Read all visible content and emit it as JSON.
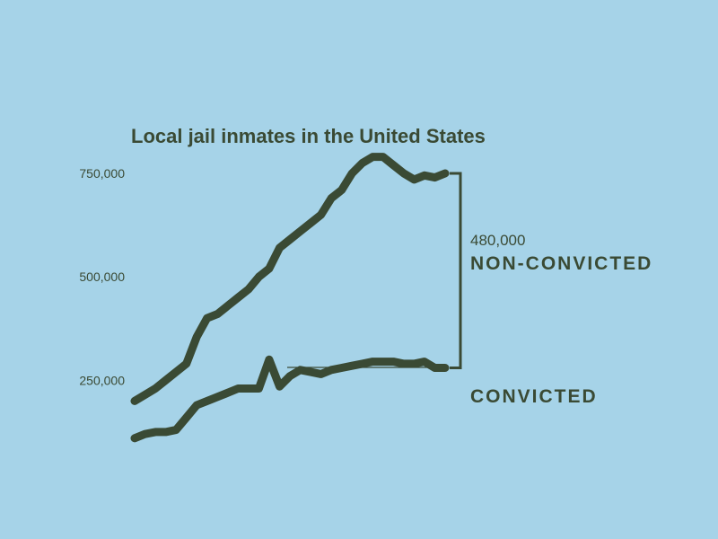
{
  "colors": {
    "background": "#a6d3e8",
    "ink": "#3a4a34"
  },
  "chart_data": {
    "type": "line",
    "title": "Local jail inmates in the United States",
    "ylim": [
      140000,
      800000
    ],
    "y_ticks": [
      {
        "value": 250000,
        "label": "250,000"
      },
      {
        "value": 500000,
        "label": "500,000"
      },
      {
        "value": 750000,
        "label": "750,000"
      }
    ],
    "grid": false,
    "series": [
      {
        "name": "NON-CONVICTED",
        "values": [
          200000,
          215000,
          230000,
          250000,
          270000,
          290000,
          355000,
          400000,
          410000,
          430000,
          450000,
          470000,
          500000,
          520000,
          570000,
          590000,
          610000,
          630000,
          650000,
          690000,
          710000,
          750000,
          775000,
          790000,
          790000,
          770000,
          750000,
          735000,
          745000,
          740000,
          750000
        ]
      },
      {
        "name": "CONVICTED",
        "values": [
          110000,
          120000,
          125000,
          125000,
          130000,
          160000,
          190000,
          200000,
          210000,
          220000,
          230000,
          230000,
          230000,
          300000,
          235000,
          260000,
          275000,
          270000,
          265000,
          275000,
          280000,
          285000,
          290000,
          295000,
          295000,
          295000,
          290000,
          290000,
          295000,
          280000,
          280000
        ]
      }
    ],
    "annotations": {
      "gap_value": "480,000",
      "gap_label": "NON-CONVICTED",
      "convicted_label": "CONVICTED"
    }
  }
}
